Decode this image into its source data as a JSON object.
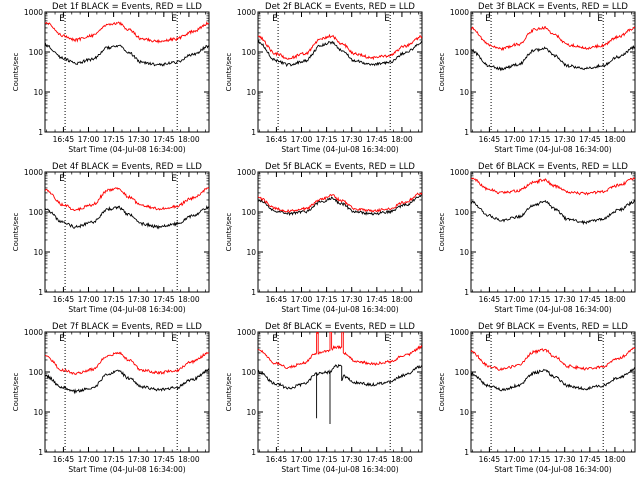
{
  "chart_data": [
    {
      "type": "line",
      "title": "Det 1f BLACK = Events, RED = LLD",
      "xlabel": "Start Time (04-Jul-08 16:34:00)",
      "ylabel": "Counts/sec",
      "yscale": "log",
      "ylim": [
        1,
        1000
      ],
      "xlim": [
        "16:34",
        "18:12"
      ],
      "x_ticks": [
        "16:45",
        "17:00",
        "17:15",
        "17:30",
        "17:45",
        "18:00"
      ],
      "y_ticks": [
        "1",
        "10",
        "100",
        "1000"
      ],
      "grid": false,
      "markers": [
        {
          "label": "E",
          "time": "16:46"
        },
        {
          "label": "E",
          "time": "17:53"
        }
      ],
      "series": [
        {
          "color": "#000000",
          "x": [
            "16:34",
            "16:45",
            "16:52",
            "17:02",
            "17:12",
            "17:18",
            "17:24",
            "17:32",
            "17:42",
            "17:52",
            "18:02",
            "18:12"
          ],
          "values": [
            150,
            70,
            52,
            65,
            130,
            140,
            95,
            55,
            48,
            55,
            85,
            140
          ]
        },
        {
          "color": "#ff0000",
          "x": [
            "16:34",
            "16:45",
            "16:52",
            "17:02",
            "17:12",
            "17:18",
            "17:24",
            "17:32",
            "17:42",
            "17:52",
            "18:02",
            "18:12"
          ],
          "values": [
            550,
            260,
            200,
            260,
            500,
            530,
            360,
            210,
            185,
            210,
            320,
            520
          ]
        }
      ]
    },
    {
      "type": "line",
      "title": "Det 2f BLACK = Events, RED = LLD",
      "xlabel": "Start Time (04-Jul-08 16:34:00)",
      "ylabel": "Counts/sec",
      "yscale": "log",
      "ylim": [
        1,
        1000
      ],
      "xlim": [
        "16:34",
        "18:12"
      ],
      "x_ticks": [
        "16:45",
        "17:00",
        "17:15",
        "17:30",
        "17:45",
        "18:00"
      ],
      "y_ticks": [
        "1",
        "10",
        "100",
        "1000"
      ],
      "grid": false,
      "markers": [
        {
          "label": "E",
          "time": "16:46"
        },
        {
          "label": "E",
          "time": "17:53"
        }
      ],
      "series": [
        {
          "color": "#000000",
          "x": [
            "16:34",
            "16:45",
            "16:52",
            "17:02",
            "17:12",
            "17:18",
            "17:24",
            "17:32",
            "17:42",
            "17:52",
            "18:02",
            "18:12"
          ],
          "values": [
            180,
            60,
            48,
            60,
            150,
            175,
            110,
            60,
            48,
            55,
            95,
            170
          ]
        },
        {
          "color": "#ff0000",
          "x": [
            "16:34",
            "16:45",
            "16:52",
            "17:02",
            "17:12",
            "17:18",
            "17:24",
            "17:32",
            "17:42",
            "17:52",
            "18:02",
            "18:12"
          ],
          "values": [
            240,
            90,
            70,
            90,
            220,
            250,
            160,
            90,
            72,
            80,
            140,
            240
          ]
        }
      ]
    },
    {
      "type": "line",
      "title": "Det 3f BLACK = Events, RED = LLD",
      "xlabel": "Start Time (04-Jul-08 16:34:00)",
      "ylabel": "Counts/sec",
      "yscale": "log",
      "ylim": [
        1,
        1000
      ],
      "xlim": [
        "16:34",
        "18:12"
      ],
      "x_ticks": [
        "16:45",
        "17:00",
        "17:15",
        "17:30",
        "17:45",
        "18:00"
      ],
      "y_ticks": [
        "1",
        "10",
        "100",
        "1000"
      ],
      "grid": false,
      "markers": [
        {
          "label": "E",
          "time": "16:46"
        },
        {
          "label": "E",
          "time": "17:53"
        }
      ],
      "series": [
        {
          "color": "#000000",
          "x": [
            "16:34",
            "16:45",
            "16:52",
            "17:02",
            "17:12",
            "17:18",
            "17:24",
            "17:32",
            "17:42",
            "17:52",
            "18:02",
            "18:12"
          ],
          "values": [
            110,
            45,
            38,
            48,
            110,
            125,
            80,
            45,
            38,
            45,
            75,
            130
          ]
        },
        {
          "color": "#ff0000",
          "x": [
            "16:34",
            "16:45",
            "16:52",
            "17:02",
            "17:12",
            "17:18",
            "17:24",
            "17:32",
            "17:42",
            "17:52",
            "18:02",
            "18:12"
          ],
          "values": [
            400,
            150,
            120,
            155,
            360,
            400,
            260,
            150,
            125,
            145,
            240,
            400
          ]
        }
      ]
    },
    {
      "type": "line",
      "title": "Det 4f BLACK = Events, RED = LLD",
      "xlabel": "Start Time (04-Jul-08 16:34:00)",
      "ylabel": "Counts/sec",
      "yscale": "log",
      "ylim": [
        1,
        1000
      ],
      "xlim": [
        "16:34",
        "18:12"
      ],
      "x_ticks": [
        "16:45",
        "17:00",
        "17:15",
        "17:30",
        "17:45",
        "18:00"
      ],
      "y_ticks": [
        "1",
        "10",
        "100",
        "1000"
      ],
      "grid": false,
      "markers": [
        {
          "label": "E",
          "time": "16:46"
        },
        {
          "label": "E",
          "time": "17:53"
        }
      ],
      "series": [
        {
          "color": "#000000",
          "x": [
            "16:34",
            "16:45",
            "16:52",
            "17:02",
            "17:12",
            "17:18",
            "17:24",
            "17:32",
            "17:42",
            "17:52",
            "18:02",
            "18:12"
          ],
          "values": [
            120,
            55,
            42,
            55,
            120,
            130,
            85,
            50,
            42,
            50,
            80,
            130
          ]
        },
        {
          "color": "#ff0000",
          "x": [
            "16:34",
            "16:45",
            "16:52",
            "17:02",
            "17:12",
            "17:18",
            "17:24",
            "17:32",
            "17:42",
            "17:52",
            "18:02",
            "18:12"
          ],
          "values": [
            350,
            150,
            115,
            150,
            350,
            380,
            240,
            140,
            120,
            135,
            220,
            380
          ]
        }
      ]
    },
    {
      "type": "line",
      "title": "Det 5f BLACK = Events, RED = LLD",
      "xlabel": "Start Time (04-Jul-08 16:34:00)",
      "ylabel": "Counts/sec",
      "yscale": "log",
      "ylim": [
        1,
        1000
      ],
      "xlim": [
        "16:34",
        "18:12"
      ],
      "x_ticks": [
        "16:45",
        "17:00",
        "17:15",
        "17:30",
        "17:45",
        "18:00"
      ],
      "y_ticks": [
        "1",
        "10",
        "100",
        "1000"
      ],
      "grid": false,
      "markers": [],
      "series": [
        {
          "color": "#000000",
          "x": [
            "16:34",
            "16:45",
            "16:52",
            "17:02",
            "17:12",
            "17:18",
            "17:24",
            "17:32",
            "17:42",
            "17:52",
            "18:02",
            "18:12"
          ],
          "values": [
            200,
            105,
            90,
            100,
            180,
            220,
            160,
            100,
            90,
            100,
            150,
            260
          ]
        },
        {
          "color": "#ff0000",
          "x": [
            "16:34",
            "16:45",
            "16:52",
            "17:02",
            "17:12",
            "17:18",
            "17:24",
            "17:32",
            "17:42",
            "17:52",
            "18:02",
            "18:12"
          ],
          "values": [
            230,
            120,
            105,
            120,
            210,
            260,
            190,
            120,
            105,
            120,
            180,
            300
          ]
        }
      ]
    },
    {
      "type": "line",
      "title": "Det 6f BLACK = Events, RED = LLD",
      "xlabel": "Start Time (04-Jul-08 16:34:00)",
      "ylabel": "Counts/sec",
      "yscale": "log",
      "ylim": [
        1,
        1000
      ],
      "xlim": [
        "16:34",
        "18:12"
      ],
      "x_ticks": [
        "16:45",
        "17:00",
        "17:15",
        "17:30",
        "17:45",
        "18:00"
      ],
      "y_ticks": [
        "1",
        "10",
        "100",
        "1000"
      ],
      "grid": false,
      "markers": [],
      "series": [
        {
          "color": "#000000",
          "x": [
            "16:34",
            "16:45",
            "16:52",
            "17:02",
            "17:12",
            "17:18",
            "17:24",
            "17:32",
            "17:42",
            "17:52",
            "18:02",
            "18:12"
          ],
          "values": [
            180,
            80,
            60,
            75,
            150,
            190,
            120,
            65,
            55,
            65,
            110,
            180
          ]
        },
        {
          "color": "#ff0000",
          "x": [
            "16:34",
            "16:45",
            "16:52",
            "17:02",
            "17:12",
            "17:18",
            "17:24",
            "17:32",
            "17:42",
            "17:52",
            "18:02",
            "18:12"
          ],
          "values": [
            700,
            360,
            300,
            340,
            560,
            650,
            440,
            310,
            290,
            320,
            460,
            680
          ]
        }
      ]
    },
    {
      "type": "line",
      "title": "Det 7f BLACK = Events, RED = LLD",
      "xlabel": "Start Time (04-Jul-08 16:34:00)",
      "ylabel": "Counts/sec",
      "yscale": "log",
      "ylim": [
        1,
        1000
      ],
      "xlim": [
        "16:34",
        "18:12"
      ],
      "x_ticks": [
        "16:45",
        "17:00",
        "17:15",
        "17:30",
        "17:45",
        "18:00"
      ],
      "y_ticks": [
        "1",
        "10",
        "100",
        "1000"
      ],
      "grid": false,
      "markers": [
        {
          "label": "E",
          "time": "16:46"
        },
        {
          "label": "E",
          "time": "17:53"
        }
      ],
      "series": [
        {
          "color": "#000000",
          "x": [
            "16:34",
            "16:45",
            "16:52",
            "17:02",
            "17:12",
            "17:18",
            "17:24",
            "17:32",
            "17:42",
            "17:52",
            "18:02",
            "18:12"
          ],
          "values": [
            80,
            40,
            33,
            40,
            90,
            105,
            70,
            42,
            36,
            40,
            65,
            110
          ]
        },
        {
          "color": "#ff0000",
          "x": [
            "16:34",
            "16:45",
            "16:52",
            "17:02",
            "17:12",
            "17:18",
            "17:24",
            "17:32",
            "17:42",
            "17:52",
            "18:02",
            "18:12"
          ],
          "values": [
            250,
            110,
            90,
            115,
            260,
            300,
            200,
            110,
            95,
            110,
            180,
            300
          ]
        }
      ]
    },
    {
      "type": "line",
      "title": "Det 8f BLACK = Events, RED = LLD",
      "xlabel": "Start Time (04-Jul-08 16:34:00)",
      "ylabel": "Counts/sec",
      "yscale": "log",
      "ylim": [
        1,
        1000
      ],
      "xlim": [
        "16:34",
        "18:12"
      ],
      "x_ticks": [
        "16:45",
        "17:00",
        "17:15",
        "17:30",
        "17:45",
        "18:00"
      ],
      "y_ticks": [
        "1",
        "10",
        "100",
        "1000"
      ],
      "grid": false,
      "markers": [
        {
          "label": "E",
          "time": "16:46"
        },
        {
          "label": "E",
          "time": "17:53"
        }
      ],
      "series": [
        {
          "color": "#000000",
          "x": [
            "16:34",
            "16:45",
            "16:52",
            "17:02",
            "17:09",
            "17:09",
            "17:09",
            "17:12",
            "17:17",
            "17:17",
            "17:17",
            "17:20",
            "17:24",
            "17:24",
            "17:24",
            "17:25",
            "17:32",
            "17:42",
            "17:52",
            "18:02",
            "18:12"
          ],
          "values": [
            100,
            50,
            40,
            50,
            90,
            7,
            90,
            95,
            100,
            5,
            100,
            140,
            140,
            60,
            60,
            80,
            55,
            48,
            55,
            85,
            140
          ]
        },
        {
          "color": "#ff0000",
          "x": [
            "16:34",
            "16:45",
            "16:52",
            "17:02",
            "17:09",
            "17:09",
            "17:10",
            "17:10",
            "17:12",
            "17:17",
            "17:17",
            "17:18",
            "17:18",
            "17:20",
            "17:24",
            "17:24",
            "17:25",
            "17:25",
            "17:32",
            "17:42",
            "17:52",
            "18:02",
            "18:12"
          ],
          "values": [
            350,
            160,
            130,
            170,
            300,
            1000,
            1000,
            300,
            320,
            350,
            1000,
            1000,
            380,
            420,
            420,
            1000,
            1000,
            300,
            190,
            160,
            180,
            260,
            420
          ]
        }
      ]
    },
    {
      "type": "line",
      "title": "Det 9f BLACK = Events, RED = LLD",
      "xlabel": "Start Time (04-Jul-08 16:34:00)",
      "ylabel": "Counts/sec",
      "yscale": "log",
      "ylim": [
        1,
        1000
      ],
      "xlim": [
        "16:34",
        "18:12"
      ],
      "x_ticks": [
        "16:45",
        "17:00",
        "17:15",
        "17:30",
        "17:45",
        "18:00"
      ],
      "y_ticks": [
        "1",
        "10",
        "100",
        "1000"
      ],
      "grid": false,
      "markers": [
        {
          "label": "E",
          "time": "16:46"
        },
        {
          "label": "E",
          "time": "17:53"
        }
      ],
      "series": [
        {
          "color": "#000000",
          "x": [
            "16:34",
            "16:45",
            "16:52",
            "17:02",
            "17:12",
            "17:18",
            "17:24",
            "17:32",
            "17:42",
            "17:52",
            "18:02",
            "18:12"
          ],
          "values": [
            90,
            45,
            36,
            45,
            95,
            110,
            75,
            45,
            38,
            45,
            70,
            120
          ]
        },
        {
          "color": "#ff0000",
          "x": [
            "16:34",
            "16:45",
            "16:52",
            "17:02",
            "17:12",
            "17:18",
            "17:24",
            "17:32",
            "17:42",
            "17:52",
            "18:02",
            "18:12"
          ],
          "values": [
            320,
            140,
            115,
            145,
            320,
            360,
            240,
            140,
            120,
            135,
            220,
            380
          ]
        }
      ]
    }
  ]
}
